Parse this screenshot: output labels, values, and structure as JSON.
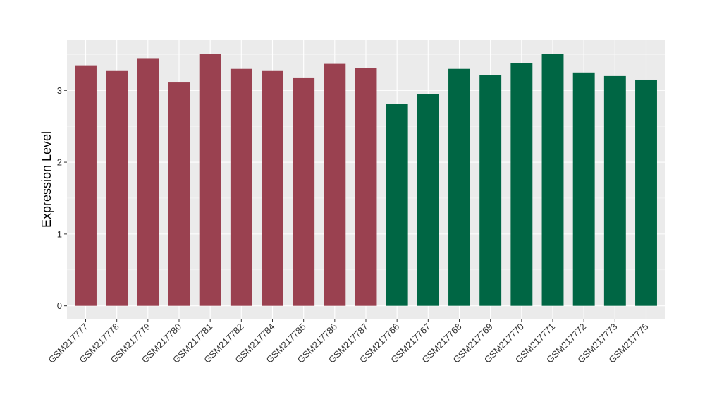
{
  "chart_data": {
    "type": "bar",
    "title": "",
    "xlabel": "",
    "ylabel": "Expression Level",
    "ylim": [
      -0.18,
      3.7
    ],
    "yticks": [
      0,
      1,
      2,
      3
    ],
    "grid": true,
    "categories": [
      "GSM217777",
      "GSM217778",
      "GSM217779",
      "GSM217780",
      "GSM217781",
      "GSM217782",
      "GSM217784",
      "GSM217785",
      "GSM217786",
      "GSM217787",
      "GSM217766",
      "GSM217767",
      "GSM217768",
      "GSM217769",
      "GSM217770",
      "GSM217771",
      "GSM217772",
      "GSM217773",
      "GSM217775"
    ],
    "values": [
      3.35,
      3.28,
      3.45,
      3.12,
      3.51,
      3.3,
      3.28,
      3.18,
      3.37,
      3.31,
      2.81,
      2.95,
      3.3,
      3.21,
      3.38,
      3.51,
      3.25,
      3.2,
      3.15
    ],
    "groups": [
      {
        "color": "#9A4150",
        "count": 10
      },
      {
        "color": "#006644",
        "count": 9
      }
    ]
  },
  "colors": {
    "panel_background": "#EBEBEB",
    "grid_major": "#FFFFFF",
    "axis_text": "#333333"
  }
}
